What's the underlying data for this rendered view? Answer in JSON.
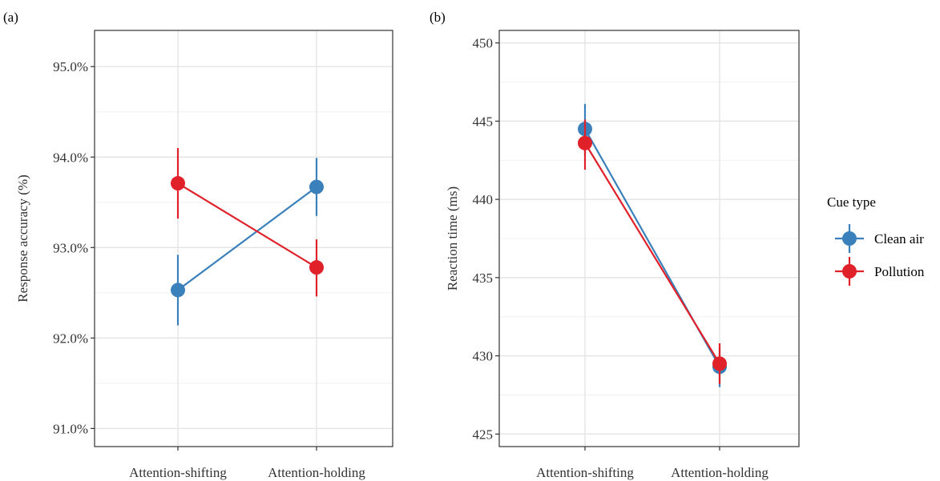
{
  "legend": {
    "title": "Cue type",
    "entries": [
      {
        "name": "Clean air",
        "color": "#3a80bb"
      },
      {
        "name": "Pollution",
        "color": "#e0212a"
      }
    ]
  },
  "chart_data": [
    {
      "panel": "(a)",
      "type": "line",
      "categories": [
        "Attention-shifting",
        "Attention-holding"
      ],
      "ylabel": "Response accuracy (%)",
      "xlabel": "",
      "ylim": [
        90.8,
        95.4
      ],
      "yticks": [
        91.0,
        92.0,
        93.0,
        94.0,
        95.0
      ],
      "ytick_labels": [
        "91.0%",
        "92.0%",
        "93.0%",
        "94.0%",
        "95.0%"
      ],
      "grid": true,
      "series": [
        {
          "name": "Clean air",
          "color": "#3a80bb",
          "values": [
            92.53,
            93.67
          ],
          "lower": [
            92.14,
            93.35
          ],
          "upper": [
            92.92,
            93.99
          ]
        },
        {
          "name": "Pollution",
          "color": "#e0212a",
          "values": [
            93.71,
            92.78
          ],
          "lower": [
            93.32,
            92.46
          ],
          "upper": [
            94.1,
            93.09
          ]
        }
      ]
    },
    {
      "panel": "(b)",
      "type": "line",
      "categories": [
        "Attention-shifting",
        "Attention-holding"
      ],
      "ylabel": "Reaction time (ms)",
      "xlabel": "",
      "ylim": [
        424.2,
        450.8
      ],
      "yticks": [
        425,
        430,
        435,
        440,
        445,
        450
      ],
      "ytick_labels": [
        "425",
        "430",
        "435",
        "440",
        "445",
        "450"
      ],
      "grid": true,
      "series": [
        {
          "name": "Clean air",
          "color": "#3a80bb",
          "values": [
            444.5,
            429.3
          ],
          "lower": [
            442.8,
            428.0
          ],
          "upper": [
            446.1,
            430.6
          ]
        },
        {
          "name": "Pollution",
          "color": "#e0212a",
          "values": [
            443.6,
            429.5
          ],
          "lower": [
            441.9,
            428.2
          ],
          "upper": [
            445.1,
            430.8
          ]
        }
      ]
    }
  ]
}
